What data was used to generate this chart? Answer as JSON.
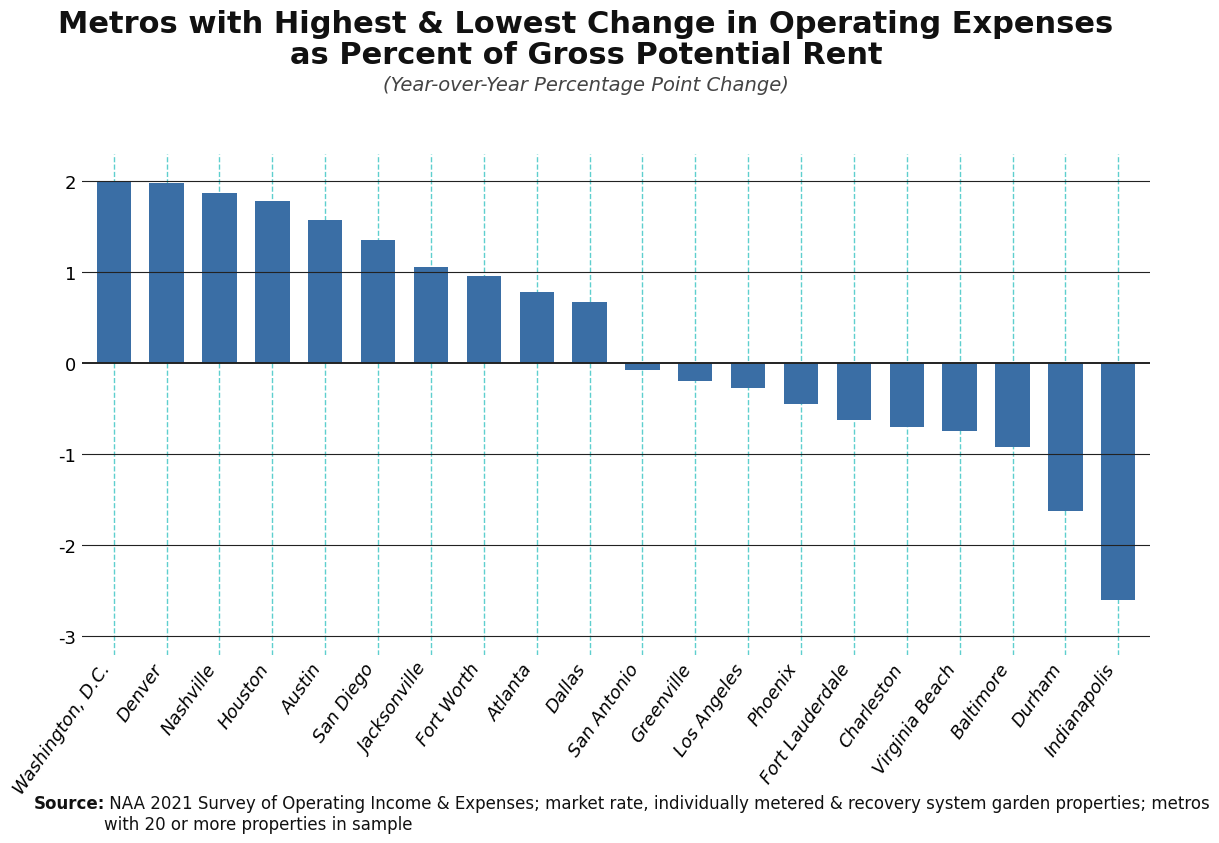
{
  "title_line1": "Metros with Highest & Lowest Change in Operating Expenses",
  "title_line2": "as Percent of Gross Potential Rent",
  "subtitle": "(Year-over-Year Percentage Point Change)",
  "categories": [
    "Washington, D.C.",
    "Denver",
    "Nashville",
    "Houston",
    "Austin",
    "San Diego",
    "Jacksonville",
    "Fort Worth",
    "Atlanta",
    "Dallas",
    "San Antonio",
    "Greenville",
    "Los Angeles",
    "Phoenix",
    "Fort Lauderdale",
    "Charleston",
    "Virginia Beach",
    "Baltimore",
    "Durham",
    "Indianapolis"
  ],
  "values": [
    2.0,
    1.98,
    1.87,
    1.78,
    1.57,
    1.35,
    1.06,
    0.96,
    0.78,
    0.67,
    -0.07,
    -0.19,
    -0.27,
    -0.45,
    -0.62,
    -0.7,
    -0.75,
    -0.92,
    -1.62,
    -2.6
  ],
  "bar_color": "#3a6ea5",
  "background_color": "#ffffff",
  "grid_color": "#222222",
  "dashed_line_color": "#5ecfce",
  "ylim": [
    -3.2,
    2.3
  ],
  "yticks": [
    -3,
    -2,
    -1,
    0,
    1,
    2
  ],
  "source_bold": "Source:",
  "source_normal": " NAA 2021 Survey of Operating Income & Expenses; market rate, individually metered & recovery system garden properties; metros\nwith 20 or more properties in sample",
  "title_fontsize": 22,
  "subtitle_fontsize": 14,
  "tick_fontsize": 13,
  "source_fontsize": 12
}
